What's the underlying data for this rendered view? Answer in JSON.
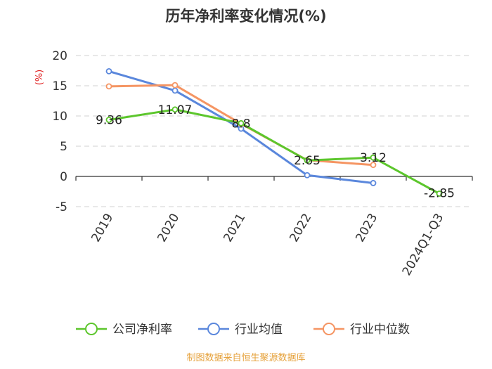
{
  "chart_data": {
    "type": "line",
    "title": "历年净利率变化情况(%)",
    "ylabel": "(%)",
    "categories": [
      "2019",
      "2020",
      "2021",
      "2022",
      "2023",
      "2024Q1-Q3"
    ],
    "ylim": [
      -5,
      20
    ],
    "yticks": [
      20,
      15,
      10,
      5,
      0,
      -5
    ],
    "grid": true,
    "legend_position": "bottom",
    "series": [
      {
        "name": "公司净利率",
        "color": "#5cc62c",
        "values": [
          9.36,
          11.07,
          8.8,
          2.65,
          3.12,
          -2.85
        ],
        "labels": [
          "9.36",
          "11.07",
          "8.8",
          "2.65",
          "3.12",
          "-2.85"
        ]
      },
      {
        "name": "行业均值",
        "color": "#5a87dc",
        "values": [
          17.4,
          14.2,
          7.9,
          0.2,
          -1.1,
          null
        ]
      },
      {
        "name": "行业中位数",
        "color": "#f59563",
        "values": [
          14.9,
          15.1,
          8.7,
          2.7,
          1.9,
          null
        ]
      }
    ],
    "source": "制图数据来自恒生聚源数据库",
    "unit_color": "#e02020",
    "source_color": "#e6a23c"
  }
}
